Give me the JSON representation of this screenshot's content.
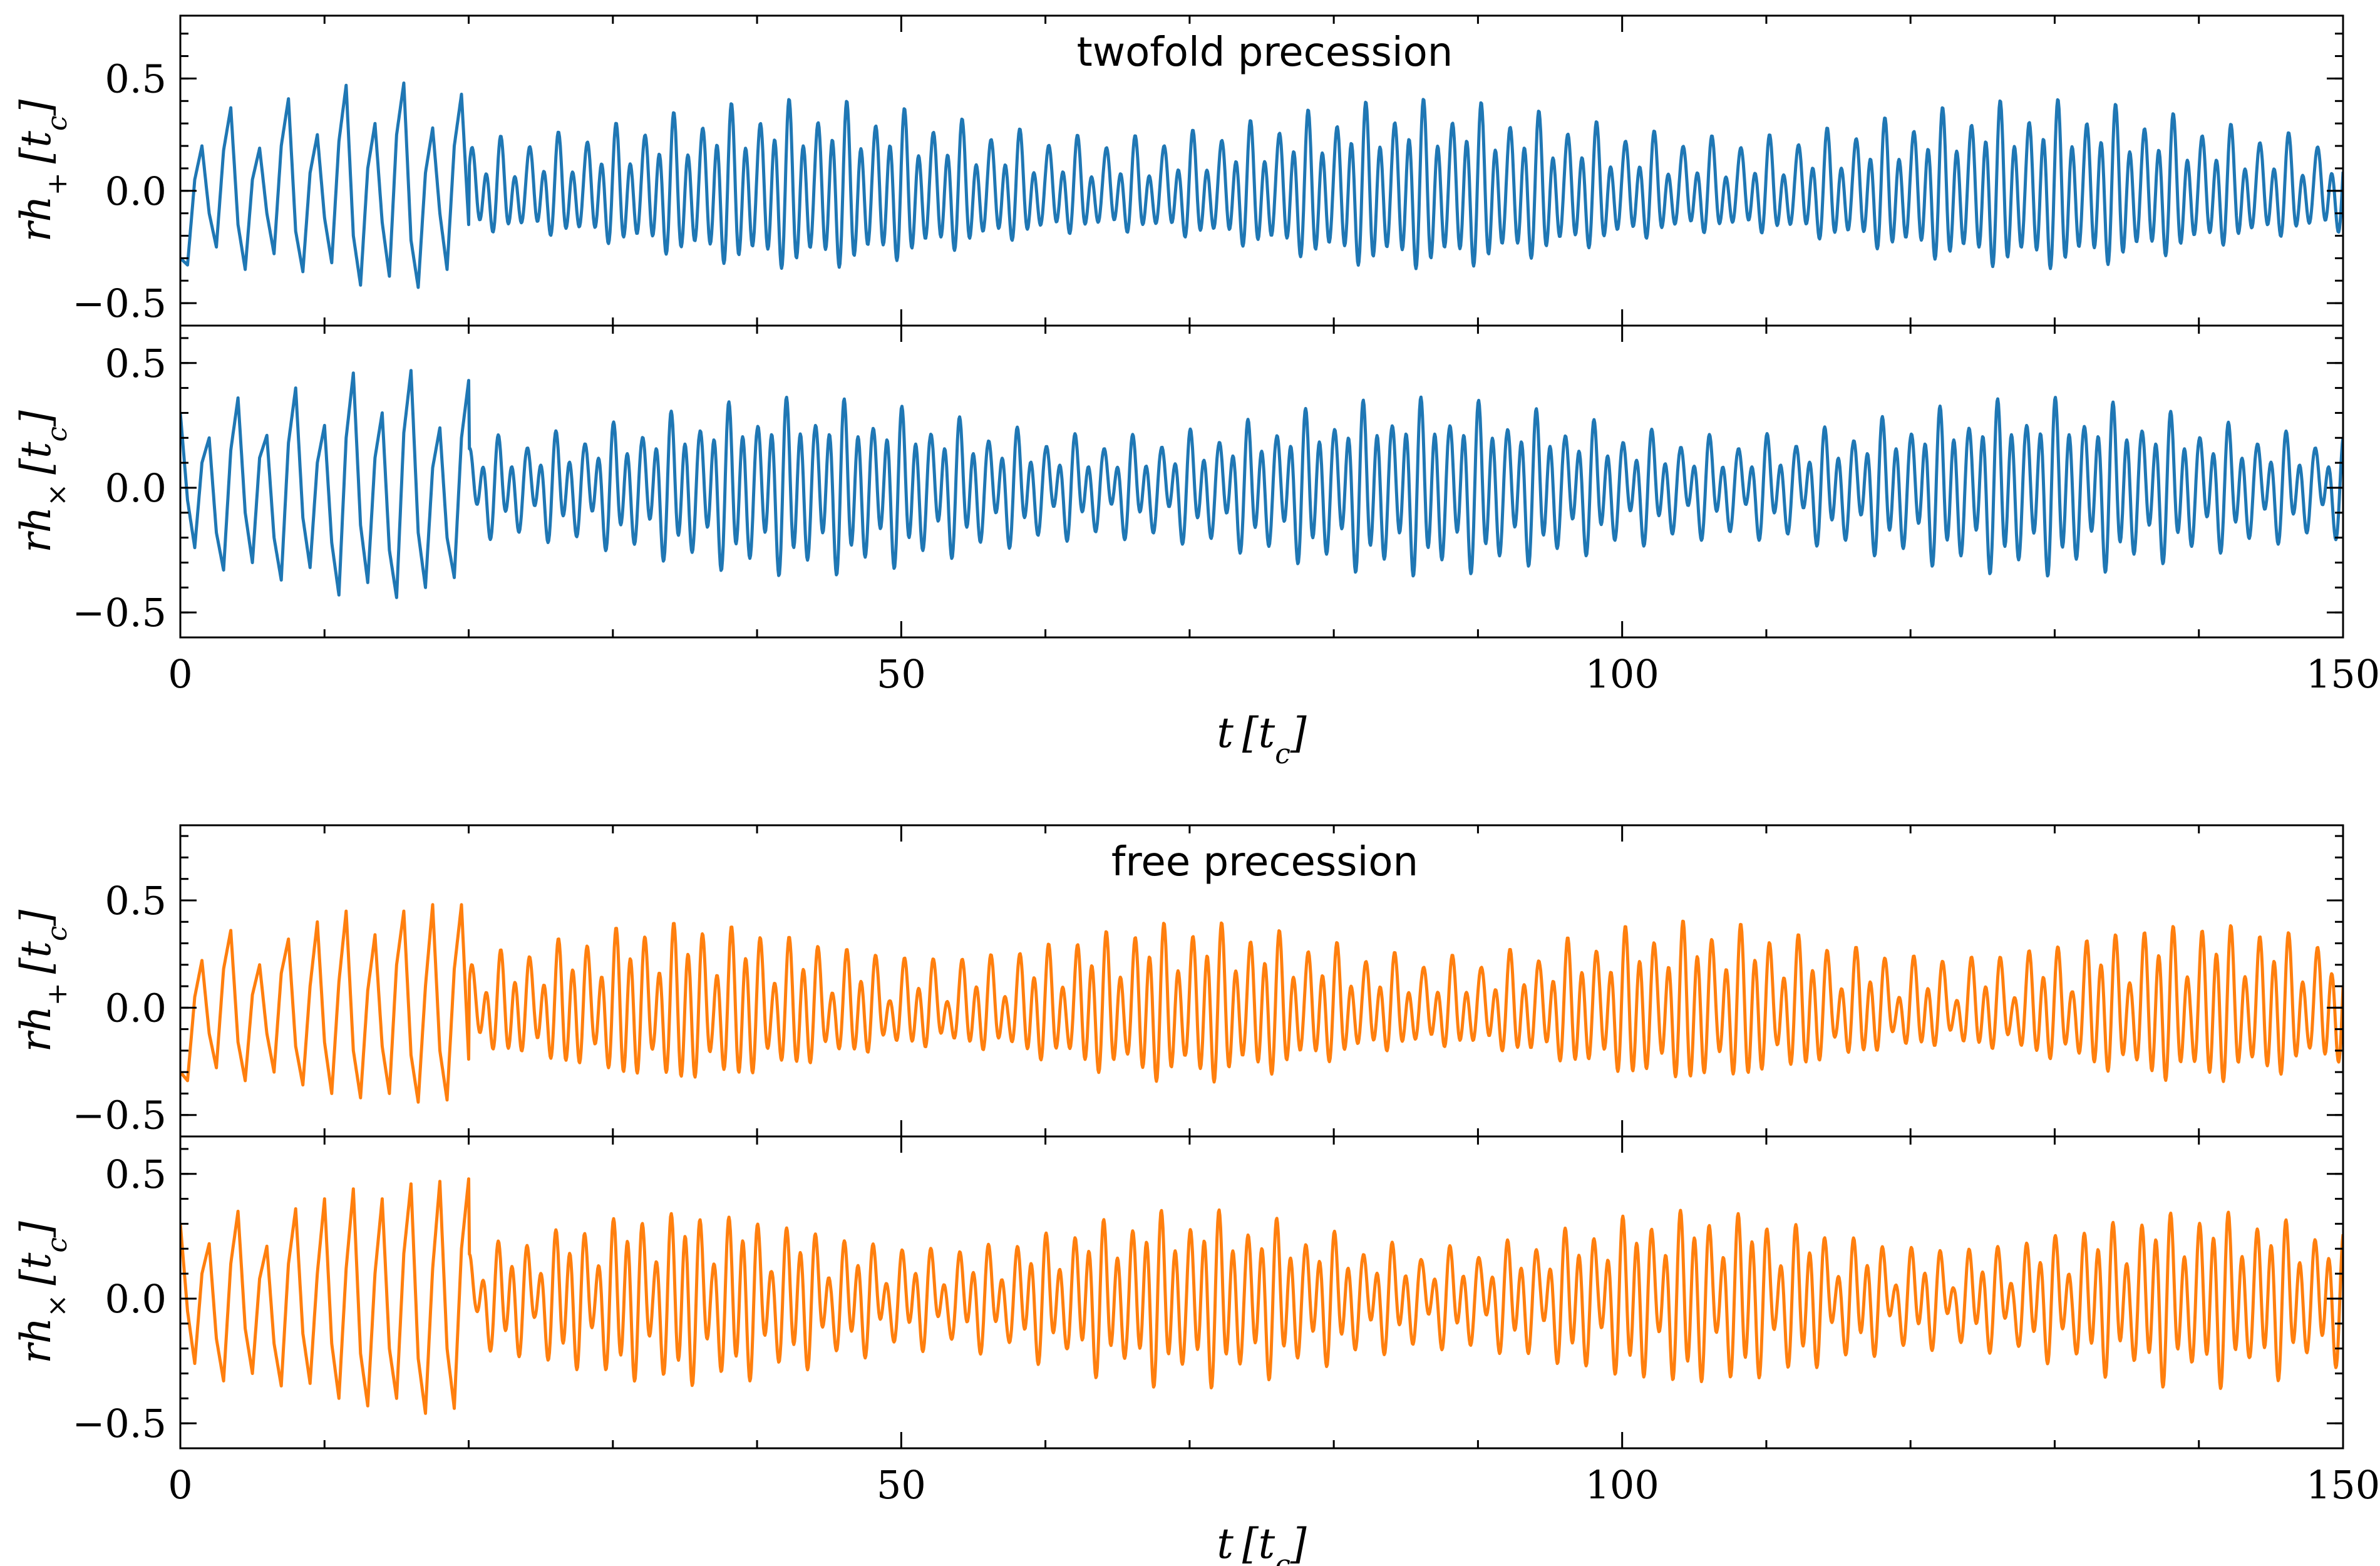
{
  "chart_data": [
    {
      "type": "line",
      "title": "twofold precession",
      "ylabel": "r h+ [tc]",
      "ylabel_main": "rh",
      "ylabel_sub": "+",
      "ylabel_unit": "[t",
      "ylabel_unit_sub": "c",
      "ylabel_close": "]",
      "xlim": [
        0,
        150
      ],
      "ylim": [
        -0.6,
        0.78
      ],
      "yticks": [
        -0.5,
        0.0,
        0.5
      ],
      "ytick_labels": [
        "−0.5",
        "0.0",
        "0.5"
      ],
      "color": "#1f77b4",
      "series": [
        {
          "x": [
            0,
            0.5,
            1,
            1.5,
            2,
            2.5,
            3,
            3.5,
            4,
            4.5,
            5,
            5.5,
            6,
            6.5,
            7,
            7.5,
            8,
            8.5,
            9,
            9.5,
            10,
            10.5,
            11,
            11.5,
            12,
            12.5,
            13,
            13.5,
            14,
            14.5,
            15,
            15.5,
            16,
            16.5,
            17,
            17.5,
            18,
            18.5,
            19,
            19.5,
            20
          ],
          "values": [
            -0.3,
            -0.33,
            0.05,
            0.2,
            -0.1,
            -0.25,
            0.18,
            0.37,
            -0.15,
            -0.35,
            0.05,
            0.19,
            -0.1,
            -0.28,
            0.2,
            0.41,
            -0.18,
            -0.36,
            0.08,
            0.25,
            -0.12,
            -0.32,
            0.22,
            0.47,
            -0.2,
            -0.42,
            0.1,
            0.3,
            -0.14,
            -0.38,
            0.25,
            0.48,
            -0.22,
            -0.43,
            0.08,
            0.28,
            -0.1,
            -0.35,
            0.2,
            0.43,
            -0.15
          ]
        }
      ]
    },
    {
      "type": "line",
      "ylabel": "r h× [tc]",
      "ylabel_main": "rh",
      "ylabel_sub": "×",
      "ylabel_unit": "[t",
      "ylabel_unit_sub": "c",
      "ylabel_close": "]",
      "xlabel": "t [tc]",
      "xlabel_main": "t",
      "xlabel_unit": "[t",
      "xlabel_unit_sub": "c",
      "xlabel_close": "]",
      "xlim": [
        0,
        150
      ],
      "ylim": [
        -0.6,
        0.65
      ],
      "xticks": [
        0,
        50,
        100,
        150
      ],
      "xtick_labels": [
        "0",
        "50",
        "100",
        "150"
      ],
      "yticks": [
        -0.5,
        0.0,
        0.5
      ],
      "ytick_labels": [
        "−0.5",
        "0.0",
        "0.5"
      ],
      "color": "#1f77b4",
      "series": [
        {
          "x": [
            0,
            0.5,
            1,
            1.5,
            2,
            2.5,
            3,
            3.5,
            4,
            4.5,
            5,
            5.5,
            6,
            6.5,
            7,
            7.5,
            8,
            8.5,
            9,
            9.5,
            10,
            10.5,
            11,
            11.5,
            12,
            12.5,
            13,
            13.5,
            14,
            14.5,
            15,
            15.5,
            16,
            16.5,
            17,
            17.5,
            18,
            18.5,
            19,
            19.5,
            20
          ],
          "values": [
            0.3,
            -0.05,
            -0.24,
            0.1,
            0.2,
            -0.18,
            -0.33,
            0.15,
            0.36,
            -0.1,
            -0.3,
            0.12,
            0.21,
            -0.2,
            -0.37,
            0.18,
            0.4,
            -0.12,
            -0.32,
            0.1,
            0.25,
            -0.22,
            -0.43,
            0.2,
            0.46,
            -0.15,
            -0.38,
            0.12,
            0.3,
            -0.25,
            -0.44,
            0.22,
            0.47,
            -0.18,
            -0.4,
            0.08,
            0.24,
            -0.2,
            -0.36,
            0.2,
            0.43
          ]
        }
      ]
    },
    {
      "type": "line",
      "title": "free precession",
      "ylabel": "r h+ [tc]",
      "ylabel_main": "rh",
      "ylabel_sub": "+",
      "ylabel_unit": "[t",
      "ylabel_unit_sub": "c",
      "ylabel_close": "]",
      "xlim": [
        0,
        150
      ],
      "ylim": [
        -0.6,
        0.85
      ],
      "yticks": [
        -0.5,
        0.0,
        0.5
      ],
      "ytick_labels": [
        "−0.5",
        "0.0",
        "0.5"
      ],
      "color": "#ff7f0e",
      "series": [
        {
          "x": [
            0,
            0.5,
            1,
            1.5,
            2,
            2.5,
            3,
            3.5,
            4,
            4.5,
            5,
            5.5,
            6,
            6.5,
            7,
            7.5,
            8,
            8.5,
            9,
            9.5,
            10,
            10.5,
            11,
            11.5,
            12,
            12.5,
            13,
            13.5,
            14,
            14.5,
            15,
            15.5,
            16,
            16.5,
            17,
            17.5,
            18,
            18.5,
            19,
            19.5,
            20
          ],
          "values": [
            -0.3,
            -0.34,
            0.05,
            0.22,
            -0.12,
            -0.28,
            0.18,
            0.36,
            -0.16,
            -0.34,
            0.06,
            0.2,
            -0.12,
            -0.3,
            0.16,
            0.32,
            -0.18,
            -0.36,
            0.1,
            0.4,
            -0.16,
            -0.4,
            0.12,
            0.45,
            -0.2,
            -0.42,
            0.08,
            0.34,
            -0.18,
            -0.4,
            0.2,
            0.45,
            -0.22,
            -0.44,
            0.1,
            0.48,
            -0.2,
            -0.43,
            0.18,
            0.48,
            -0.24
          ]
        }
      ]
    },
    {
      "type": "line",
      "ylabel": "r h× [tc]",
      "ylabel_main": "rh",
      "ylabel_sub": "×",
      "ylabel_unit": "[t",
      "ylabel_unit_sub": "c",
      "ylabel_close": "]",
      "xlabel": "t [tc]",
      "xlabel_main": "t",
      "xlabel_unit": "[t",
      "xlabel_unit_sub": "c",
      "xlabel_close": "]",
      "xlim": [
        0,
        150
      ],
      "ylim": [
        -0.6,
        0.65
      ],
      "xticks": [
        0,
        50,
        100,
        150
      ],
      "xtick_labels": [
        "0",
        "50",
        "100",
        "150"
      ],
      "yticks": [
        -0.5,
        0.0,
        0.5
      ],
      "ytick_labels": [
        "−0.5",
        "0.0",
        "0.5"
      ],
      "color": "#ff7f0e",
      "series": [
        {
          "x": [
            0,
            0.5,
            1,
            1.5,
            2,
            2.5,
            3,
            3.5,
            4,
            4.5,
            5,
            5.5,
            6,
            6.5,
            7,
            7.5,
            8,
            8.5,
            9,
            9.5,
            10,
            10.5,
            11,
            11.5,
            12,
            12.5,
            13,
            13.5,
            14,
            14.5,
            15,
            15.5,
            16,
            16.5,
            17,
            17.5,
            18,
            18.5,
            19,
            19.5,
            20
          ],
          "values": [
            0.3,
            -0.05,
            -0.26,
            0.1,
            0.22,
            -0.16,
            -0.33,
            0.14,
            0.35,
            -0.12,
            -0.3,
            0.08,
            0.21,
            -0.18,
            -0.35,
            0.14,
            0.36,
            -0.14,
            -0.34,
            0.1,
            0.4,
            -0.18,
            -0.4,
            0.12,
            0.44,
            -0.22,
            -0.43,
            0.1,
            0.4,
            -0.2,
            -0.4,
            0.18,
            0.46,
            -0.24,
            -0.46,
            0.12,
            0.47,
            -0.2,
            -0.44,
            0.2,
            0.48
          ]
        }
      ]
    }
  ]
}
